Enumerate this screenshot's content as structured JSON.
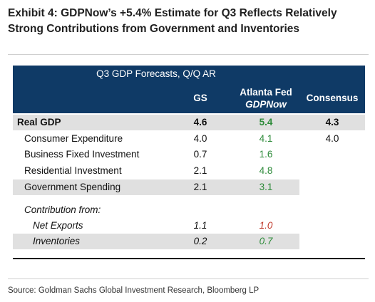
{
  "title": "Exhibit 4: GDPNow’s +5.4% Estimate for Q3 Reflects Relatively Strong Contributions from Government and Inventories",
  "table": {
    "group_header": "Q3 GDP Forecasts, Q/Q AR",
    "columns": {
      "gs": "GS",
      "atlanta_line1": "Atlanta Fed",
      "atlanta_line2": "GDPNow",
      "consensus": "Consensus"
    },
    "rows": [
      {
        "label": "Real GDP",
        "gs": "4.6",
        "atlanta": "5.4",
        "consensus": "4.3"
      },
      {
        "label": "Consumer Expenditure",
        "gs": "4.0",
        "atlanta": "4.1",
        "consensus": "4.0"
      },
      {
        "label": "Business Fixed Investment",
        "gs": "0.7",
        "atlanta": "1.6",
        "consensus": ""
      },
      {
        "label": "Residential Investment",
        "gs": "2.1",
        "atlanta": "4.8",
        "consensus": ""
      },
      {
        "label": "Government Spending",
        "gs": "2.1",
        "atlanta": "3.1",
        "consensus": ""
      }
    ],
    "contribution_header": "Contribution from:",
    "contribution_rows": [
      {
        "label": "Net Exports",
        "gs": "1.1",
        "atlanta": "1.0"
      },
      {
        "label": "Inventories",
        "gs": "0.2",
        "atlanta": "0.7"
      }
    ]
  },
  "colors": {
    "header_bg": "#0f3a66",
    "shade": "#e0e0e0",
    "green": "#2e8b3a",
    "red": "#c0392b"
  },
  "source": "Source: Goldman Sachs Global Investment Research, Bloomberg LP"
}
